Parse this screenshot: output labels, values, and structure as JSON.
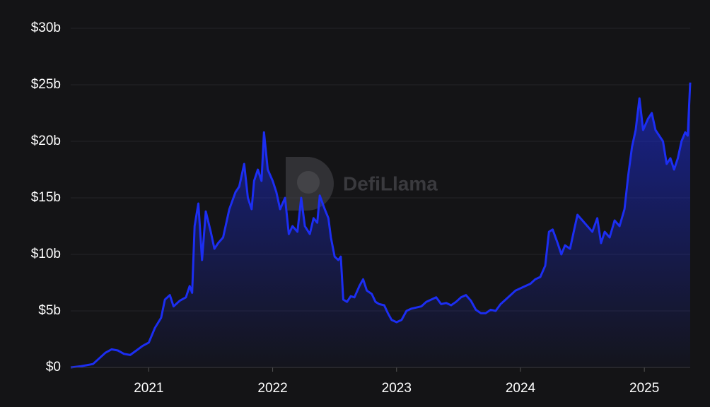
{
  "chart_data": {
    "type": "area",
    "watermark": "DefiLlama",
    "color": "#1c2ef2",
    "grid": true,
    "xlim": [
      2020.37,
      2025.37
    ],
    "xticks": [
      2021,
      2022,
      2023,
      2024,
      2025
    ],
    "ylim": [
      0,
      30
    ],
    "yticks": [
      {
        "value": 0,
        "label": "$0"
      },
      {
        "value": 5,
        "label": "$5b"
      },
      {
        "value": 10,
        "label": "$10b"
      },
      {
        "value": 15,
        "label": "$15b"
      },
      {
        "value": 20,
        "label": "$20b"
      },
      {
        "value": 25,
        "label": "$25b"
      },
      {
        "value": 30,
        "label": "$30b"
      }
    ],
    "x": [
      2020.37,
      2020.45,
      2020.55,
      2020.6,
      2020.65,
      2020.7,
      2020.75,
      2020.8,
      2020.85,
      2020.9,
      2020.95,
      2021,
      2021.05,
      2021.1,
      2021.13,
      2021.17,
      2021.2,
      2021.25,
      2021.3,
      2021.33,
      2021.35,
      2021.37,
      2021.4,
      2021.43,
      2021.46,
      2021.5,
      2021.53,
      2021.56,
      2021.6,
      2021.65,
      2021.7,
      2021.73,
      2021.77,
      2021.8,
      2021.83,
      2021.85,
      2021.88,
      2021.91,
      2021.93,
      2021.96,
      2022,
      2022.03,
      2022.06,
      2022.1,
      2022.13,
      2022.16,
      2022.2,
      2022.23,
      2022.26,
      2022.3,
      2022.33,
      2022.36,
      2022.38,
      2022.42,
      2022.45,
      2022.47,
      2022.5,
      2022.53,
      2022.55,
      2022.57,
      2022.6,
      2022.63,
      2022.66,
      2022.7,
      2022.73,
      2022.76,
      2022.8,
      2022.83,
      2022.86,
      2022.9,
      2022.93,
      2022.96,
      2023,
      2023.04,
      2023.08,
      2023.12,
      2023.16,
      2023.2,
      2023.24,
      2023.28,
      2023.32,
      2023.36,
      2023.4,
      2023.44,
      2023.48,
      2023.52,
      2023.56,
      2023.6,
      2023.64,
      2023.68,
      2023.72,
      2023.76,
      2023.8,
      2023.84,
      2023.88,
      2023.92,
      2023.96,
      2024,
      2024.04,
      2024.08,
      2024.12,
      2024.16,
      2024.2,
      2024.23,
      2024.26,
      2024.3,
      2024.33,
      2024.36,
      2024.4,
      2024.43,
      2024.46,
      2024.5,
      2024.54,
      2024.58,
      2024.62,
      2024.65,
      2024.68,
      2024.72,
      2024.76,
      2024.8,
      2024.84,
      2024.87,
      2024.9,
      2024.93,
      2024.96,
      2024.99,
      2025.03,
      2025.06,
      2025.09,
      2025.12,
      2025.15,
      2025.18,
      2025.21,
      2025.24,
      2025.27,
      2025.3,
      2025.33,
      2025.35,
      2025.37
    ],
    "values": [
      0,
      0.1,
      0.3,
      0.8,
      1.3,
      1.6,
      1.5,
      1.2,
      1.1,
      1.5,
      1.9,
      2.2,
      3.5,
      4.4,
      6.0,
      6.4,
      5.4,
      5.9,
      6.2,
      7.2,
      6.6,
      12.5,
      14.5,
      9.5,
      13.8,
      12.0,
      10.5,
      11.0,
      11.5,
      14.0,
      15.5,
      16.0,
      18.0,
      15.0,
      14.0,
      16.5,
      17.5,
      16.5,
      20.8,
      17.5,
      16.5,
      15.5,
      14.0,
      15.0,
      11.8,
      12.5,
      12.0,
      15.0,
      12.5,
      11.8,
      13.2,
      12.8,
      15.2,
      14.0,
      13.2,
      11.5,
      9.8,
      9.5,
      9.8,
      6.0,
      5.8,
      6.3,
      6.2,
      7.2,
      7.8,
      6.8,
      6.5,
      5.8,
      5.6,
      5.5,
      4.8,
      4.2,
      4.0,
      4.2,
      5.0,
      5.2,
      5.3,
      5.4,
      5.8,
      6.0,
      6.2,
      5.6,
      5.7,
      5.5,
      5.8,
      6.2,
      6.4,
      5.9,
      5.1,
      4.8,
      4.8,
      5.1,
      5.0,
      5.6,
      6.0,
      6.4,
      6.8,
      7.0,
      7.2,
      7.4,
      7.8,
      8.0,
      9.0,
      12.0,
      12.2,
      11.0,
      10.0,
      10.8,
      10.5,
      12.0,
      13.5,
      13.0,
      12.5,
      12.0,
      13.2,
      11.0,
      12.0,
      11.5,
      13.0,
      12.5,
      14.0,
      17.0,
      19.5,
      21.0,
      23.8,
      21.0,
      22.0,
      22.5,
      21.0,
      20.5,
      20.0,
      18.0,
      18.5,
      17.5,
      18.5,
      20.0,
      20.8,
      20.5,
      25.2
    ]
  }
}
